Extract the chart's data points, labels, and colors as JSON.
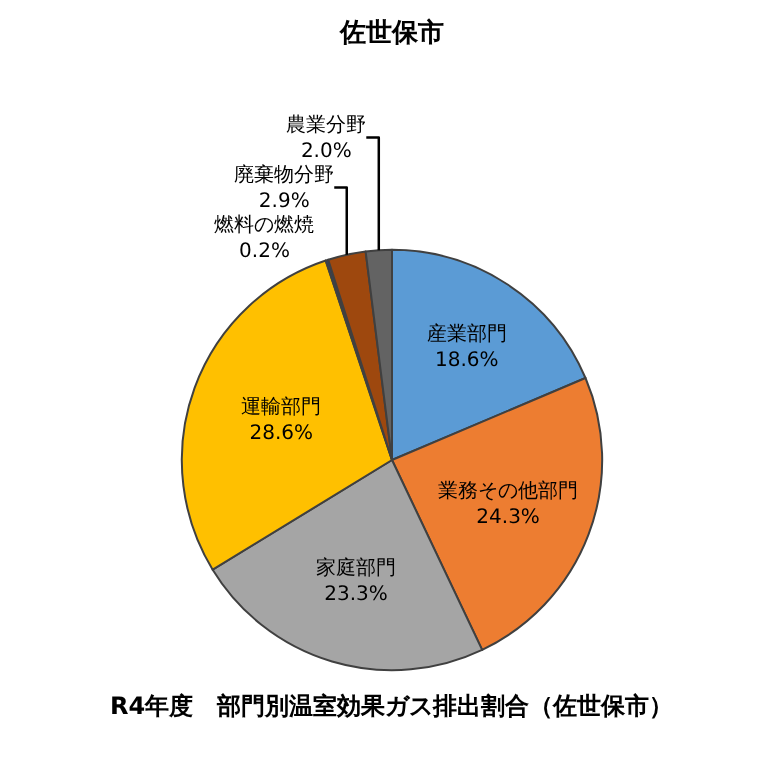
{
  "chart_data": {
    "type": "pie",
    "title": "佐世保市",
    "categories": [
      "産業部門",
      "業務その他部門",
      "家庭部門",
      "運輸部門",
      "燃料の燃焼",
      "廃棄物分野",
      "農業分野"
    ],
    "values": [
      18.6,
      24.3,
      23.3,
      28.6,
      0.2,
      2.9,
      2.0
    ],
    "colors": [
      "#5b9bd5",
      "#ed7d31",
      "#a5a5a5",
      "#ffc000",
      "#264478",
      "#9e480e",
      "#636363"
    ],
    "value_labels": [
      "18.6%",
      "24.3%",
      "23.3%",
      "28.6%",
      "0.2%",
      "2.9%",
      "2.0%"
    ],
    "legend": false,
    "annotations": [
      "R4年度　部門別温室効果ガス排出割合（佐世保市）"
    ]
  }
}
